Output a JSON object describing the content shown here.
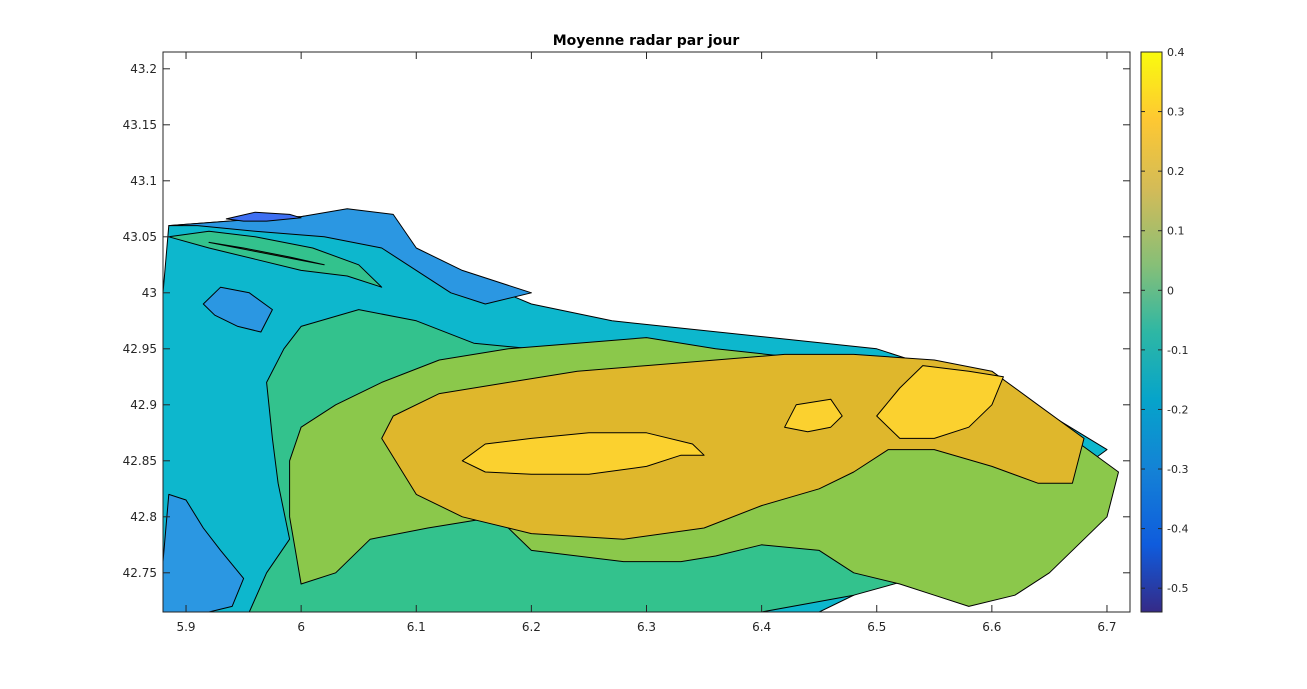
{
  "chart_data": {
    "type": "contour",
    "title": "Moyenne radar par jour",
    "xlabel": "",
    "ylabel": "",
    "xlim": [
      5.88,
      6.72
    ],
    "ylim": [
      42.715,
      43.215
    ],
    "xticks": [
      5.9,
      6,
      6.1,
      6.2,
      6.3,
      6.4,
      6.5,
      6.6,
      6.7
    ],
    "xtick_labels": [
      "5.9",
      "6",
      "6.1",
      "6.2",
      "6.3",
      "6.4",
      "6.5",
      "6.6",
      "6.7"
    ],
    "yticks": [
      42.75,
      42.8,
      42.85,
      42.9,
      42.95,
      43,
      43.05,
      43.1,
      43.15,
      43.2
    ],
    "ytick_labels": [
      "42.75",
      "42.8",
      "42.85",
      "42.9",
      "42.95",
      "43",
      "43.05",
      "43.1",
      "43.15",
      "43.2"
    ],
    "colorbar": {
      "range": [
        -0.54,
        0.4
      ],
      "ticks": [
        -0.5,
        -0.4,
        -0.3,
        -0.2,
        -0.1,
        0,
        0.1,
        0.2,
        0.3,
        0.4
      ],
      "tick_labels": [
        "-0.5",
        "-0.4",
        "-0.3",
        "-0.2",
        "-0.1",
        "0",
        "0.1",
        "0.2",
        "0.3",
        "0.4"
      ],
      "colormap": "parula"
    },
    "levels": [
      -0.2,
      -0.1,
      0,
      0.1,
      0.2,
      0.3
    ],
    "level_colors": {
      "-0.3": "#3e6ff2",
      "-0.2": "#2b97e2",
      "-0.1": "#0db7cd",
      "0": "#33c28d",
      "0.1": "#8bc84b",
      "0.2": "#dfb72c",
      "0.3": "#fbd12f"
    },
    "regions": [
      {
        "level": -0.1,
        "points": [
          [
            5.88,
            42.715
          ],
          [
            5.88,
            43.0
          ],
          [
            5.885,
            43.06
          ],
          [
            5.95,
            43.065
          ],
          [
            6.0,
            43.068
          ],
          [
            6.03,
            43.072
          ],
          [
            6.07,
            43.05
          ],
          [
            6.13,
            43.02
          ],
          [
            6.2,
            42.99
          ],
          [
            6.27,
            42.975
          ],
          [
            6.5,
            42.95
          ],
          [
            6.62,
            42.91
          ],
          [
            6.7,
            42.86
          ],
          [
            6.62,
            42.8
          ],
          [
            6.5,
            42.74
          ],
          [
            6.45,
            42.715
          ]
        ]
      },
      {
        "level": -0.2,
        "points": [
          [
            5.88,
            42.715
          ],
          [
            5.88,
            42.76
          ],
          [
            5.885,
            42.82
          ],
          [
            5.9,
            42.815
          ],
          [
            5.915,
            42.79
          ],
          [
            5.93,
            42.77
          ],
          [
            5.95,
            42.745
          ],
          [
            5.94,
            42.72
          ],
          [
            5.92,
            42.715
          ]
        ]
      },
      {
        "level": -0.2,
        "points": [
          [
            5.915,
            42.99
          ],
          [
            5.93,
            43.005
          ],
          [
            5.955,
            43.0
          ],
          [
            5.975,
            42.985
          ],
          [
            5.965,
            42.965
          ],
          [
            5.945,
            42.97
          ],
          [
            5.925,
            42.98
          ]
        ]
      },
      {
        "level": -0.2,
        "points": [
          [
            5.885,
            43.06
          ],
          [
            5.95,
            43.065
          ],
          [
            6.0,
            43.068
          ],
          [
            6.04,
            43.075
          ],
          [
            6.08,
            43.07
          ],
          [
            6.1,
            43.04
          ],
          [
            6.14,
            43.02
          ],
          [
            6.2,
            43.0
          ],
          [
            6.16,
            42.99
          ],
          [
            6.13,
            43.0
          ],
          [
            6.1,
            43.02
          ],
          [
            6.07,
            43.04
          ],
          [
            6.02,
            43.05
          ],
          [
            5.96,
            43.055
          ],
          [
            5.91,
            43.06
          ]
        ]
      },
      {
        "level": -0.3,
        "points": [
          [
            5.935,
            43.066
          ],
          [
            5.96,
            43.072
          ],
          [
            5.99,
            43.07
          ],
          [
            6.0,
            43.067
          ],
          [
            5.97,
            43.064
          ],
          [
            5.95,
            43.064
          ]
        ]
      },
      {
        "level": 0,
        "points": [
          [
            5.955,
            42.715
          ],
          [
            5.97,
            42.75
          ],
          [
            5.99,
            42.78
          ],
          [
            5.98,
            42.83
          ],
          [
            5.975,
            42.87
          ],
          [
            5.97,
            42.92
          ],
          [
            5.985,
            42.95
          ],
          [
            6.0,
            42.97
          ],
          [
            6.05,
            42.985
          ],
          [
            6.1,
            42.975
          ],
          [
            6.15,
            42.955
          ],
          [
            6.2,
            42.95
          ],
          [
            6.26,
            42.95
          ],
          [
            6.3,
            42.95
          ],
          [
            6.36,
            42.94
          ],
          [
            6.4,
            42.93
          ],
          [
            6.48,
            42.93
          ],
          [
            6.55,
            42.9
          ],
          [
            6.6,
            42.86
          ],
          [
            6.62,
            42.8
          ],
          [
            6.55,
            42.75
          ],
          [
            6.48,
            42.73
          ],
          [
            6.4,
            42.715
          ]
        ]
      },
      {
        "level": 0,
        "points": [
          [
            5.885,
            43.05
          ],
          [
            5.92,
            43.04
          ],
          [
            5.96,
            43.03
          ],
          [
            6.0,
            43.02
          ],
          [
            6.04,
            43.015
          ],
          [
            6.07,
            43.005
          ],
          [
            6.05,
            43.025
          ],
          [
            6.01,
            43.04
          ],
          [
            5.96,
            43.05
          ],
          [
            5.92,
            43.055
          ]
        ]
      },
      {
        "level": 0.1,
        "points": [
          [
            6.0,
            42.74
          ],
          [
            6.03,
            42.75
          ],
          [
            6.06,
            42.78
          ],
          [
            6.11,
            42.79
          ],
          [
            6.17,
            42.8
          ],
          [
            6.2,
            42.77
          ],
          [
            6.24,
            42.765
          ],
          [
            6.28,
            42.76
          ],
          [
            6.33,
            42.76
          ],
          [
            6.36,
            42.765
          ],
          [
            6.4,
            42.775
          ],
          [
            6.45,
            42.77
          ],
          [
            6.48,
            42.75
          ],
          [
            6.52,
            42.74
          ],
          [
            6.55,
            42.73
          ],
          [
            6.58,
            42.72
          ],
          [
            6.62,
            42.73
          ],
          [
            6.65,
            42.75
          ],
          [
            6.7,
            42.8
          ],
          [
            6.71,
            42.84
          ],
          [
            6.67,
            42.87
          ],
          [
            6.62,
            42.88
          ],
          [
            6.55,
            42.91
          ],
          [
            6.45,
            42.94
          ],
          [
            6.36,
            42.95
          ],
          [
            6.3,
            42.96
          ],
          [
            6.24,
            42.955
          ],
          [
            6.18,
            42.95
          ],
          [
            6.12,
            42.94
          ],
          [
            6.07,
            42.92
          ],
          [
            6.03,
            42.9
          ],
          [
            6.0,
            42.88
          ],
          [
            5.99,
            42.85
          ],
          [
            5.99,
            42.8
          ],
          [
            5.995,
            42.77
          ]
        ]
      },
      {
        "level": 0.1,
        "points": [
          [
            5.92,
            43.045
          ],
          [
            5.95,
            43.04
          ],
          [
            5.99,
            43.032
          ],
          [
            6.02,
            43.025
          ],
          [
            5.995,
            43.03
          ],
          [
            5.96,
            43.037
          ]
        ]
      },
      {
        "level": 0.2,
        "points": [
          [
            6.07,
            42.87
          ],
          [
            6.1,
            42.82
          ],
          [
            6.14,
            42.8
          ],
          [
            6.2,
            42.785
          ],
          [
            6.28,
            42.78
          ],
          [
            6.35,
            42.79
          ],
          [
            6.4,
            42.81
          ],
          [
            6.45,
            42.825
          ],
          [
            6.48,
            42.84
          ],
          [
            6.51,
            42.86
          ],
          [
            6.55,
            42.86
          ],
          [
            6.6,
            42.845
          ],
          [
            6.64,
            42.83
          ],
          [
            6.67,
            42.83
          ],
          [
            6.68,
            42.87
          ],
          [
            6.64,
            42.9
          ],
          [
            6.6,
            42.93
          ],
          [
            6.55,
            42.94
          ],
          [
            6.48,
            42.945
          ],
          [
            6.42,
            42.945
          ],
          [
            6.36,
            42.94
          ],
          [
            6.3,
            42.935
          ],
          [
            6.24,
            42.93
          ],
          [
            6.18,
            42.92
          ],
          [
            6.12,
            42.91
          ],
          [
            6.08,
            42.89
          ]
        ]
      },
      {
        "level": 0.3,
        "points": [
          [
            6.14,
            42.85
          ],
          [
            6.16,
            42.84
          ],
          [
            6.2,
            42.838
          ],
          [
            6.25,
            42.838
          ],
          [
            6.3,
            42.845
          ],
          [
            6.33,
            42.855
          ],
          [
            6.35,
            42.855
          ],
          [
            6.34,
            42.865
          ],
          [
            6.3,
            42.875
          ],
          [
            6.25,
            42.875
          ],
          [
            6.2,
            42.87
          ],
          [
            6.16,
            42.865
          ]
        ]
      },
      {
        "level": 0.3,
        "points": [
          [
            6.42,
            42.88
          ],
          [
            6.43,
            42.9
          ],
          [
            6.46,
            42.905
          ],
          [
            6.47,
            42.89
          ],
          [
            6.46,
            42.88
          ],
          [
            6.44,
            42.876
          ]
        ]
      },
      {
        "level": 0.3,
        "points": [
          [
            6.5,
            42.89
          ],
          [
            6.52,
            42.915
          ],
          [
            6.54,
            42.935
          ],
          [
            6.58,
            42.93
          ],
          [
            6.61,
            42.925
          ],
          [
            6.6,
            42.9
          ],
          [
            6.58,
            42.88
          ],
          [
            6.55,
            42.87
          ],
          [
            6.52,
            42.87
          ]
        ]
      }
    ]
  }
}
